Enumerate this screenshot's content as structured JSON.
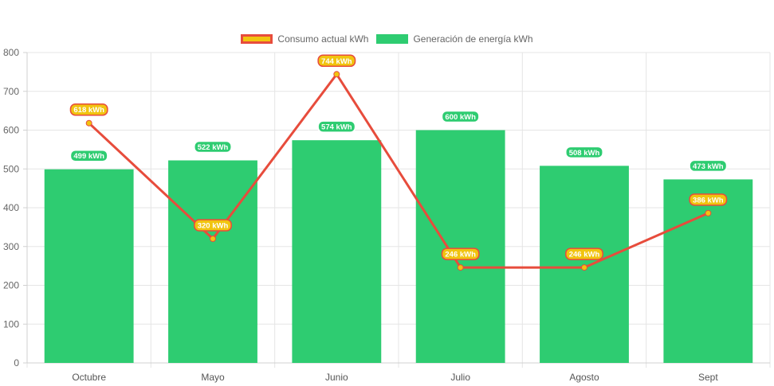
{
  "chart_data": {
    "type": "bar",
    "categories": [
      "Octubre",
      "Mayo",
      "Junio",
      "Julio",
      "Agosto",
      "Sept"
    ],
    "series": [
      {
        "name": "Consumo actual kWh",
        "type": "line",
        "values": [
          618,
          320,
          744,
          246,
          246,
          386
        ],
        "labels": [
          "618 kWh",
          "320 kWh",
          "744 kWh",
          "246 kWh",
          "246 kWh",
          "386 kWh"
        ],
        "color": "#e74c3c",
        "fill": "#f1c40f"
      },
      {
        "name": "Generación de energía kWh",
        "type": "bar",
        "values": [
          499,
          522,
          574,
          600,
          508,
          473
        ],
        "labels": [
          "499 kWh",
          "522 kWh",
          "574 kWh",
          "600 kWh",
          "508 kWh",
          "473 kWh"
        ],
        "color": "#2ecc71"
      }
    ],
    "ylim": [
      0,
      800
    ],
    "yticks": [
      0,
      100,
      200,
      300,
      400,
      500,
      600,
      700,
      800
    ],
    "grid": true,
    "legend": "top-center",
    "title": "",
    "xlabel": "",
    "ylabel": ""
  }
}
